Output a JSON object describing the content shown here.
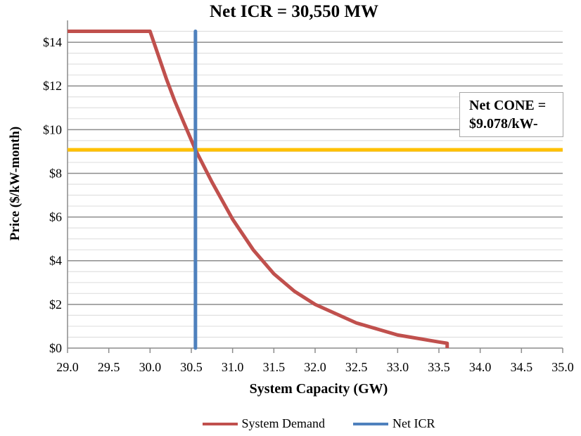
{
  "chart_data": {
    "type": "line",
    "title": "Net ICR = 30,550 MW",
    "xlabel": "System Capacity (GW)",
    "ylabel": "Price ($/kW-month)",
    "xlim": [
      29.0,
      35.0
    ],
    "ylim": [
      0,
      15
    ],
    "x_ticks": [
      "29.0",
      "29.5",
      "30.0",
      "30.5",
      "31.0",
      "31.5",
      "32.0",
      "32.5",
      "33.0",
      "33.5",
      "34.0",
      "34.5",
      "35.0"
    ],
    "y_ticks": [
      "$0",
      "$2",
      "$4",
      "$6",
      "$8",
      "$10",
      "$12",
      "$14"
    ],
    "grid": true,
    "legend_position": "bottom",
    "series": [
      {
        "name": "System Demand",
        "color": "#C0504D",
        "x": [
          29.0,
          30.0,
          30.1,
          30.2,
          30.3,
          30.4,
          30.55,
          30.75,
          31.0,
          31.25,
          31.5,
          31.75,
          32.0,
          32.5,
          33.0,
          33.5,
          33.6,
          33.6
        ],
        "y": [
          14.5,
          14.5,
          13.4,
          12.3,
          11.3,
          10.4,
          9.078,
          7.6,
          5.9,
          4.5,
          3.4,
          2.6,
          2.0,
          1.15,
          0.6,
          0.28,
          0.22,
          0
        ]
      },
      {
        "name": "Net ICR",
        "color": "#4F81BD",
        "x_value": 30.55,
        "y_range": [
          0,
          14.5
        ]
      }
    ],
    "reference_line": {
      "label": "Net CONE",
      "color": "#FFC000",
      "y_value": 9.078
    },
    "annotation": {
      "line1": "Net CONE =",
      "line2": "$9.078/kW-"
    }
  }
}
